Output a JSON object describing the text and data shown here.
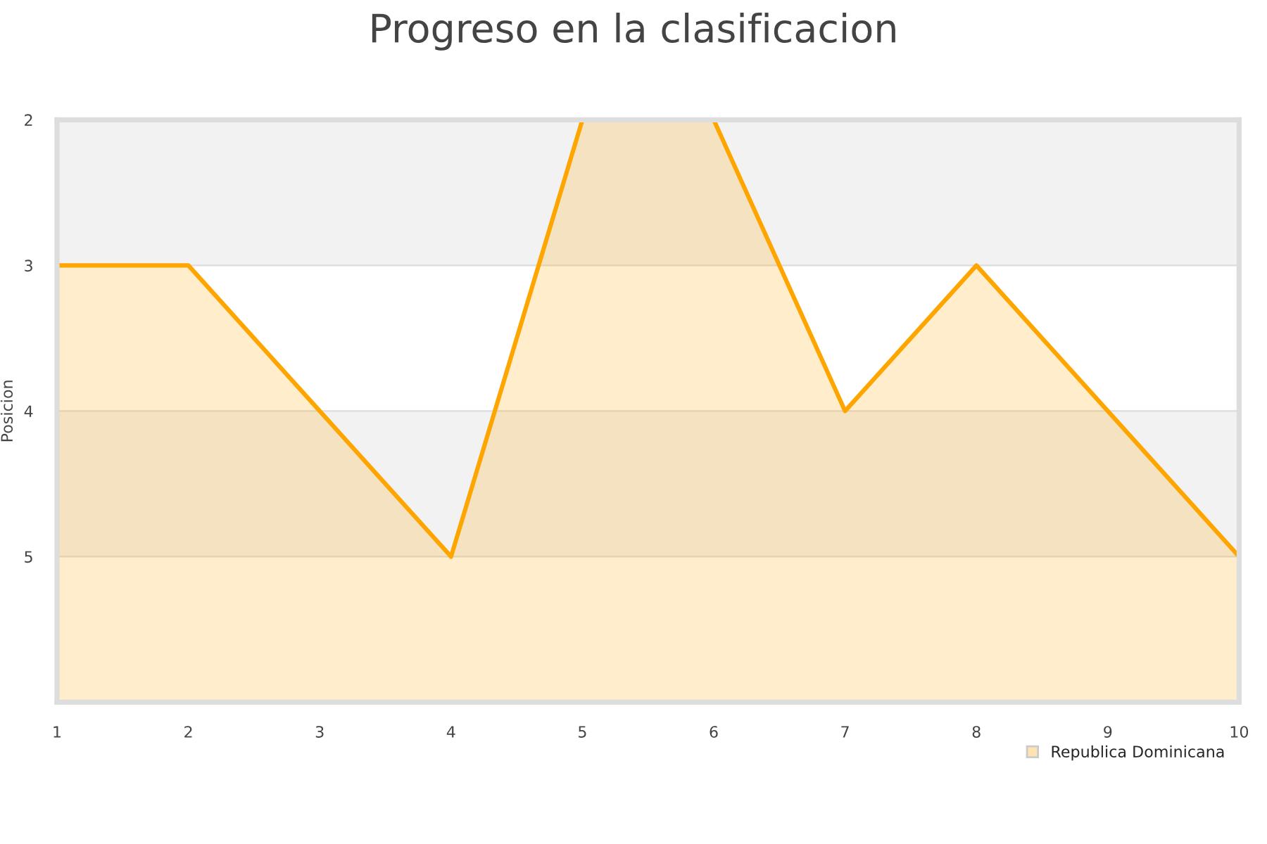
{
  "chart_data": {
    "type": "area",
    "title": "Progreso en la clasificacion",
    "ylabel": "Posicion",
    "x": [
      1,
      2,
      3,
      4,
      5,
      6,
      7,
      8,
      9,
      10
    ],
    "series": [
      {
        "name": "Republica Dominicana",
        "color": "#ffa500",
        "values": [
          3,
          3,
          4,
          5,
          2,
          2,
          4,
          3,
          4,
          5
        ]
      }
    ],
    "xlim": [
      1,
      10
    ],
    "xticks": [
      1,
      2,
      3,
      4,
      5,
      6,
      7,
      8,
      9,
      10
    ],
    "ylim": [
      6,
      2
    ],
    "yticks": [
      2,
      3,
      4,
      5
    ],
    "bands": [
      {
        "axis": "y",
        "from": 2,
        "to": 3,
        "color": "#f2f2f2"
      },
      {
        "axis": "y",
        "from": 4,
        "to": 5,
        "color": "#f2f2f2"
      }
    ],
    "grid": "y",
    "legend": "bottom right",
    "marker": "none",
    "line_style": "solid"
  }
}
